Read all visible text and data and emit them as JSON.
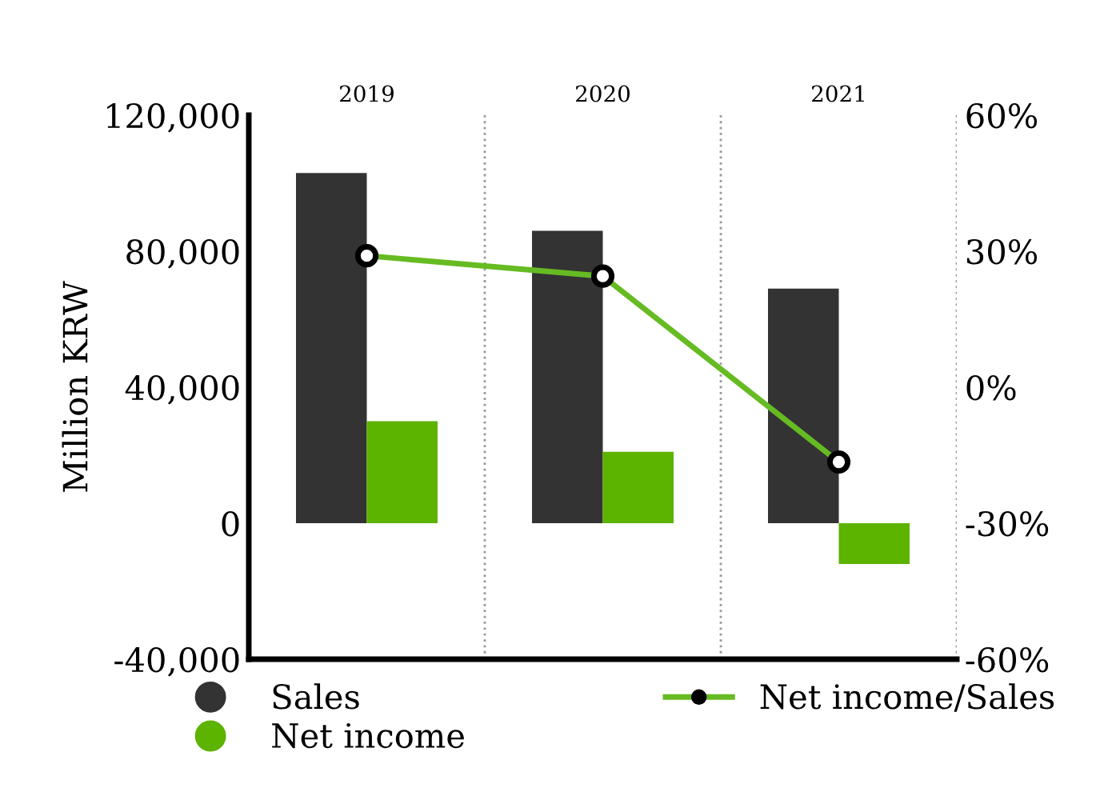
{
  "chart_data": {
    "type": "bar",
    "categories": [
      "2019",
      "2020",
      "2021"
    ],
    "ylabel": "Million KRW",
    "series": [
      {
        "name": "Sales",
        "color": "#333333",
        "values": [
          103000,
          86000,
          69000
        ]
      },
      {
        "name": "Net income",
        "color": "#5cb300",
        "values": [
          30000,
          21000,
          -12000
        ]
      },
      {
        "name": "Net income/Sales",
        "type": "line",
        "axis": "y2",
        "color": "#66bb22",
        "marker": "circle",
        "line_style": "solid",
        "values": [
          29,
          24.5,
          -16.5
        ]
      }
    ],
    "ylim": [
      -40000,
      120000
    ],
    "yticks": [
      {
        "value": -40000,
        "label": "-40,000"
      },
      {
        "value": 0,
        "label": "0"
      },
      {
        "value": 40000,
        "label": "40,000"
      },
      {
        "value": 80000,
        "label": "80,000"
      },
      {
        "value": 120000,
        "label": "120,000"
      }
    ],
    "y2lim": [
      -60,
      60
    ],
    "y2ticks": [
      {
        "value": -60,
        "label": "-60%"
      },
      {
        "value": -30,
        "label": "-30%"
      },
      {
        "value": 0,
        "label": "0%"
      },
      {
        "value": 30,
        "label": "30%"
      },
      {
        "value": 60,
        "label": "60%"
      }
    ],
    "grid": "x",
    "legend": "bottom"
  }
}
